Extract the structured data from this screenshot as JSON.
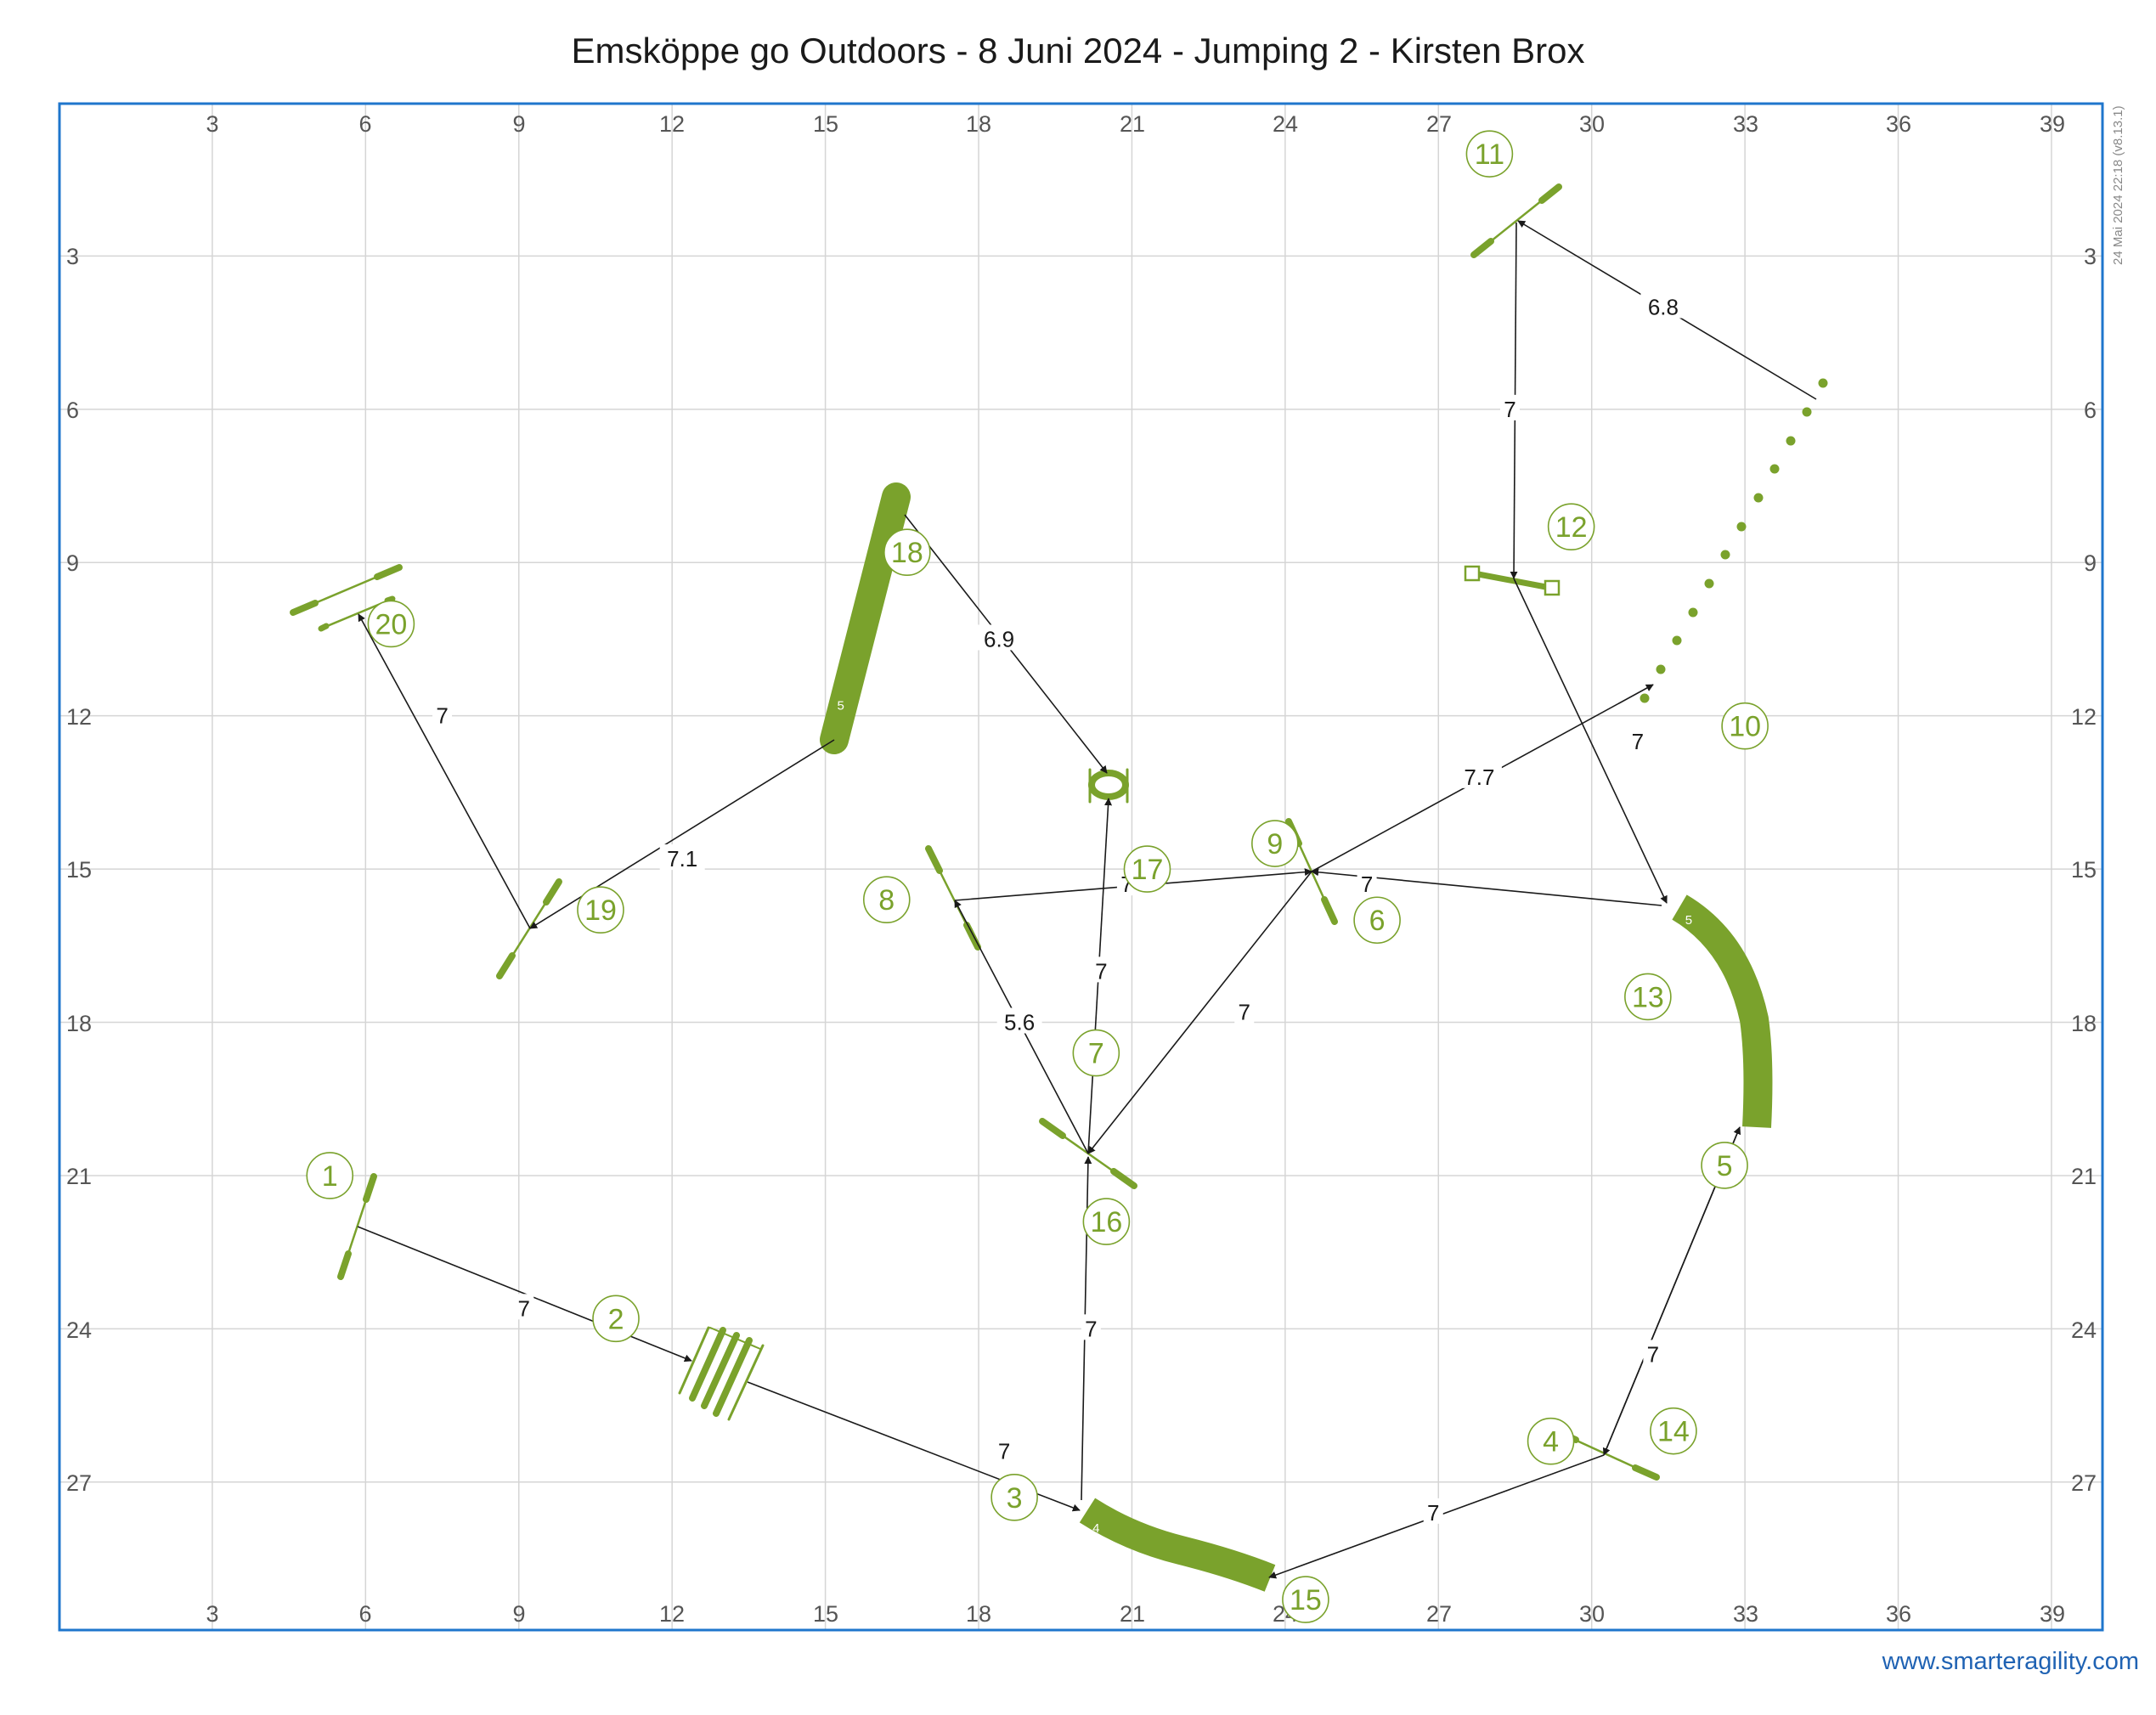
{
  "title": "Emsköppe go Outdoors - 8 Juni 2024 - Jumping 2 - Kirsten Brox",
  "watermark": "www.smarteragility.com",
  "version_text": "24 Mai 2024 22:18 (v8.13.1)",
  "colors": {
    "frame": "#1f76cc",
    "grid": "#d5d5d5",
    "obstacle": "#7aa22c",
    "path": "#1a1a1a",
    "watermark": "#1f62b3"
  },
  "grid": {
    "x_labels": [
      "3",
      "6",
      "9",
      "12",
      "15",
      "18",
      "21",
      "24",
      "27",
      "30",
      "33",
      "36",
      "39"
    ],
    "y_labels": [
      "3",
      "6",
      "9",
      "12",
      "15",
      "18",
      "21",
      "24",
      "27"
    ]
  },
  "obstacle_numbers": [
    {
      "text": "1",
      "x": 5.3,
      "y": 21.0
    },
    {
      "text": "2",
      "x": 10.9,
      "y": 23.8
    },
    {
      "text": "3",
      "x": 18.7,
      "y": 27.3
    },
    {
      "text": "4",
      "x": 29.2,
      "y": 26.2
    },
    {
      "text": "5",
      "x": 32.6,
      "y": 20.8
    },
    {
      "text": "6",
      "x": 25.8,
      "y": 16.0
    },
    {
      "text": "7",
      "x": 20.3,
      "y": 18.6
    },
    {
      "text": "8",
      "x": 16.2,
      "y": 15.6
    },
    {
      "text": "9",
      "x": 23.8,
      "y": 14.5
    },
    {
      "text": "10",
      "x": 33.0,
      "y": 12.2
    },
    {
      "text": "11",
      "x": 28.0,
      "y": 1.0
    },
    {
      "text": "12",
      "x": 29.6,
      "y": 8.3
    },
    {
      "text": "13",
      "x": 31.1,
      "y": 17.5
    },
    {
      "text": "14",
      "x": 31.6,
      "y": 26.0
    },
    {
      "text": "15",
      "x": 24.4,
      "y": 29.3
    },
    {
      "text": "16",
      "x": 20.5,
      "y": 21.9
    },
    {
      "text": "17",
      "x": 21.3,
      "y": 15.0
    },
    {
      "text": "18",
      "x": 16.6,
      "y": 8.8
    },
    {
      "text": "19",
      "x": 10.6,
      "y": 15.8
    },
    {
      "text": "20",
      "x": 6.5,
      "y": 10.2
    }
  ],
  "distances": [
    {
      "text": "7",
      "x": 9.1,
      "y": 23.6
    },
    {
      "text": "7",
      "x": 18.5,
      "y": 26.4
    },
    {
      "text": "7",
      "x": 26.9,
      "y": 27.6
    },
    {
      "text": "7",
      "x": 31.2,
      "y": 24.5
    },
    {
      "text": "7",
      "x": 20.2,
      "y": 24.0
    },
    {
      "text": "7",
      "x": 25.6,
      "y": 15.3
    },
    {
      "text": "7",
      "x": 23.2,
      "y": 17.8
    },
    {
      "text": "7",
      "x": 20.4,
      "y": 17.0
    },
    {
      "text": "5.6",
      "x": 18.8,
      "y": 18.0
    },
    {
      "text": "7",
      "x": 20.9,
      "y": 15.3
    },
    {
      "text": "7.7",
      "x": 27.8,
      "y": 13.2
    },
    {
      "text": "6.8",
      "x": 31.4,
      "y": 4.0
    },
    {
      "text": "7",
      "x": 28.4,
      "y": 6.0
    },
    {
      "text": "7",
      "x": 30.9,
      "y": 12.5
    },
    {
      "text": "6.9",
      "x": 18.4,
      "y": 10.5
    },
    {
      "text": "7.1",
      "x": 12.2,
      "y": 14.8
    },
    {
      "text": "7",
      "x": 7.5,
      "y": 12.0
    }
  ],
  "tunnel_labels": [
    {
      "text": "4",
      "x": 20.3,
      "y": 27.9
    },
    {
      "text": "5",
      "x": 31.9,
      "y": 16.0
    },
    {
      "text": "5",
      "x": 15.3,
      "y": 11.8
    }
  ]
}
